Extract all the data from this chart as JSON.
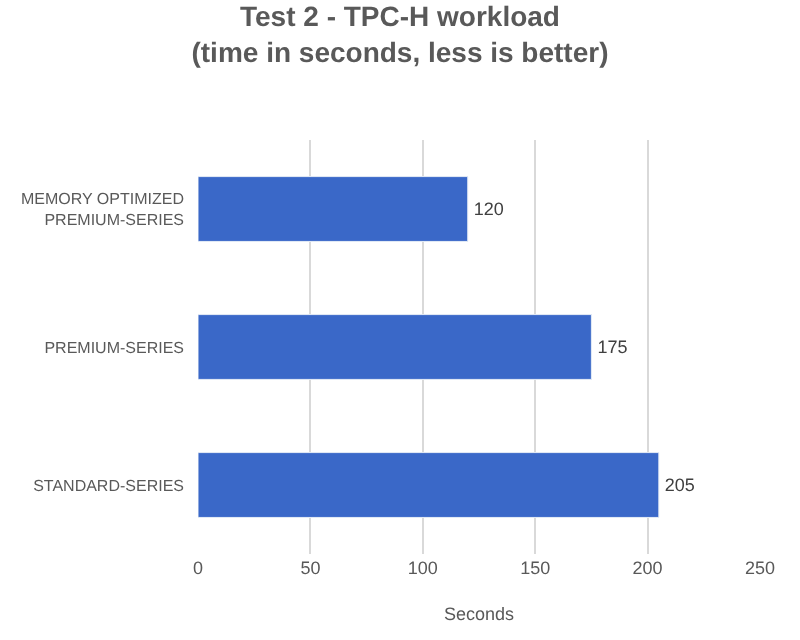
{
  "chart_data": {
    "type": "bar",
    "orientation": "horizontal",
    "title": "Test 2 - TPC-H workload\n(time in seconds, less is better)",
    "xlabel": "Seconds",
    "categories": [
      "MEMORY OPTIMIZED\nPREMIUM-SERIES",
      "PREMIUM-SERIES",
      "STANDARD-SERIES"
    ],
    "values": [
      120,
      175,
      205
    ],
    "color": "#3a68c8",
    "data_labels": true,
    "xlim": [
      0,
      250
    ],
    "xticks": [
      0,
      50,
      100,
      150,
      200,
      250
    ],
    "grid": "x",
    "legend": false
  }
}
